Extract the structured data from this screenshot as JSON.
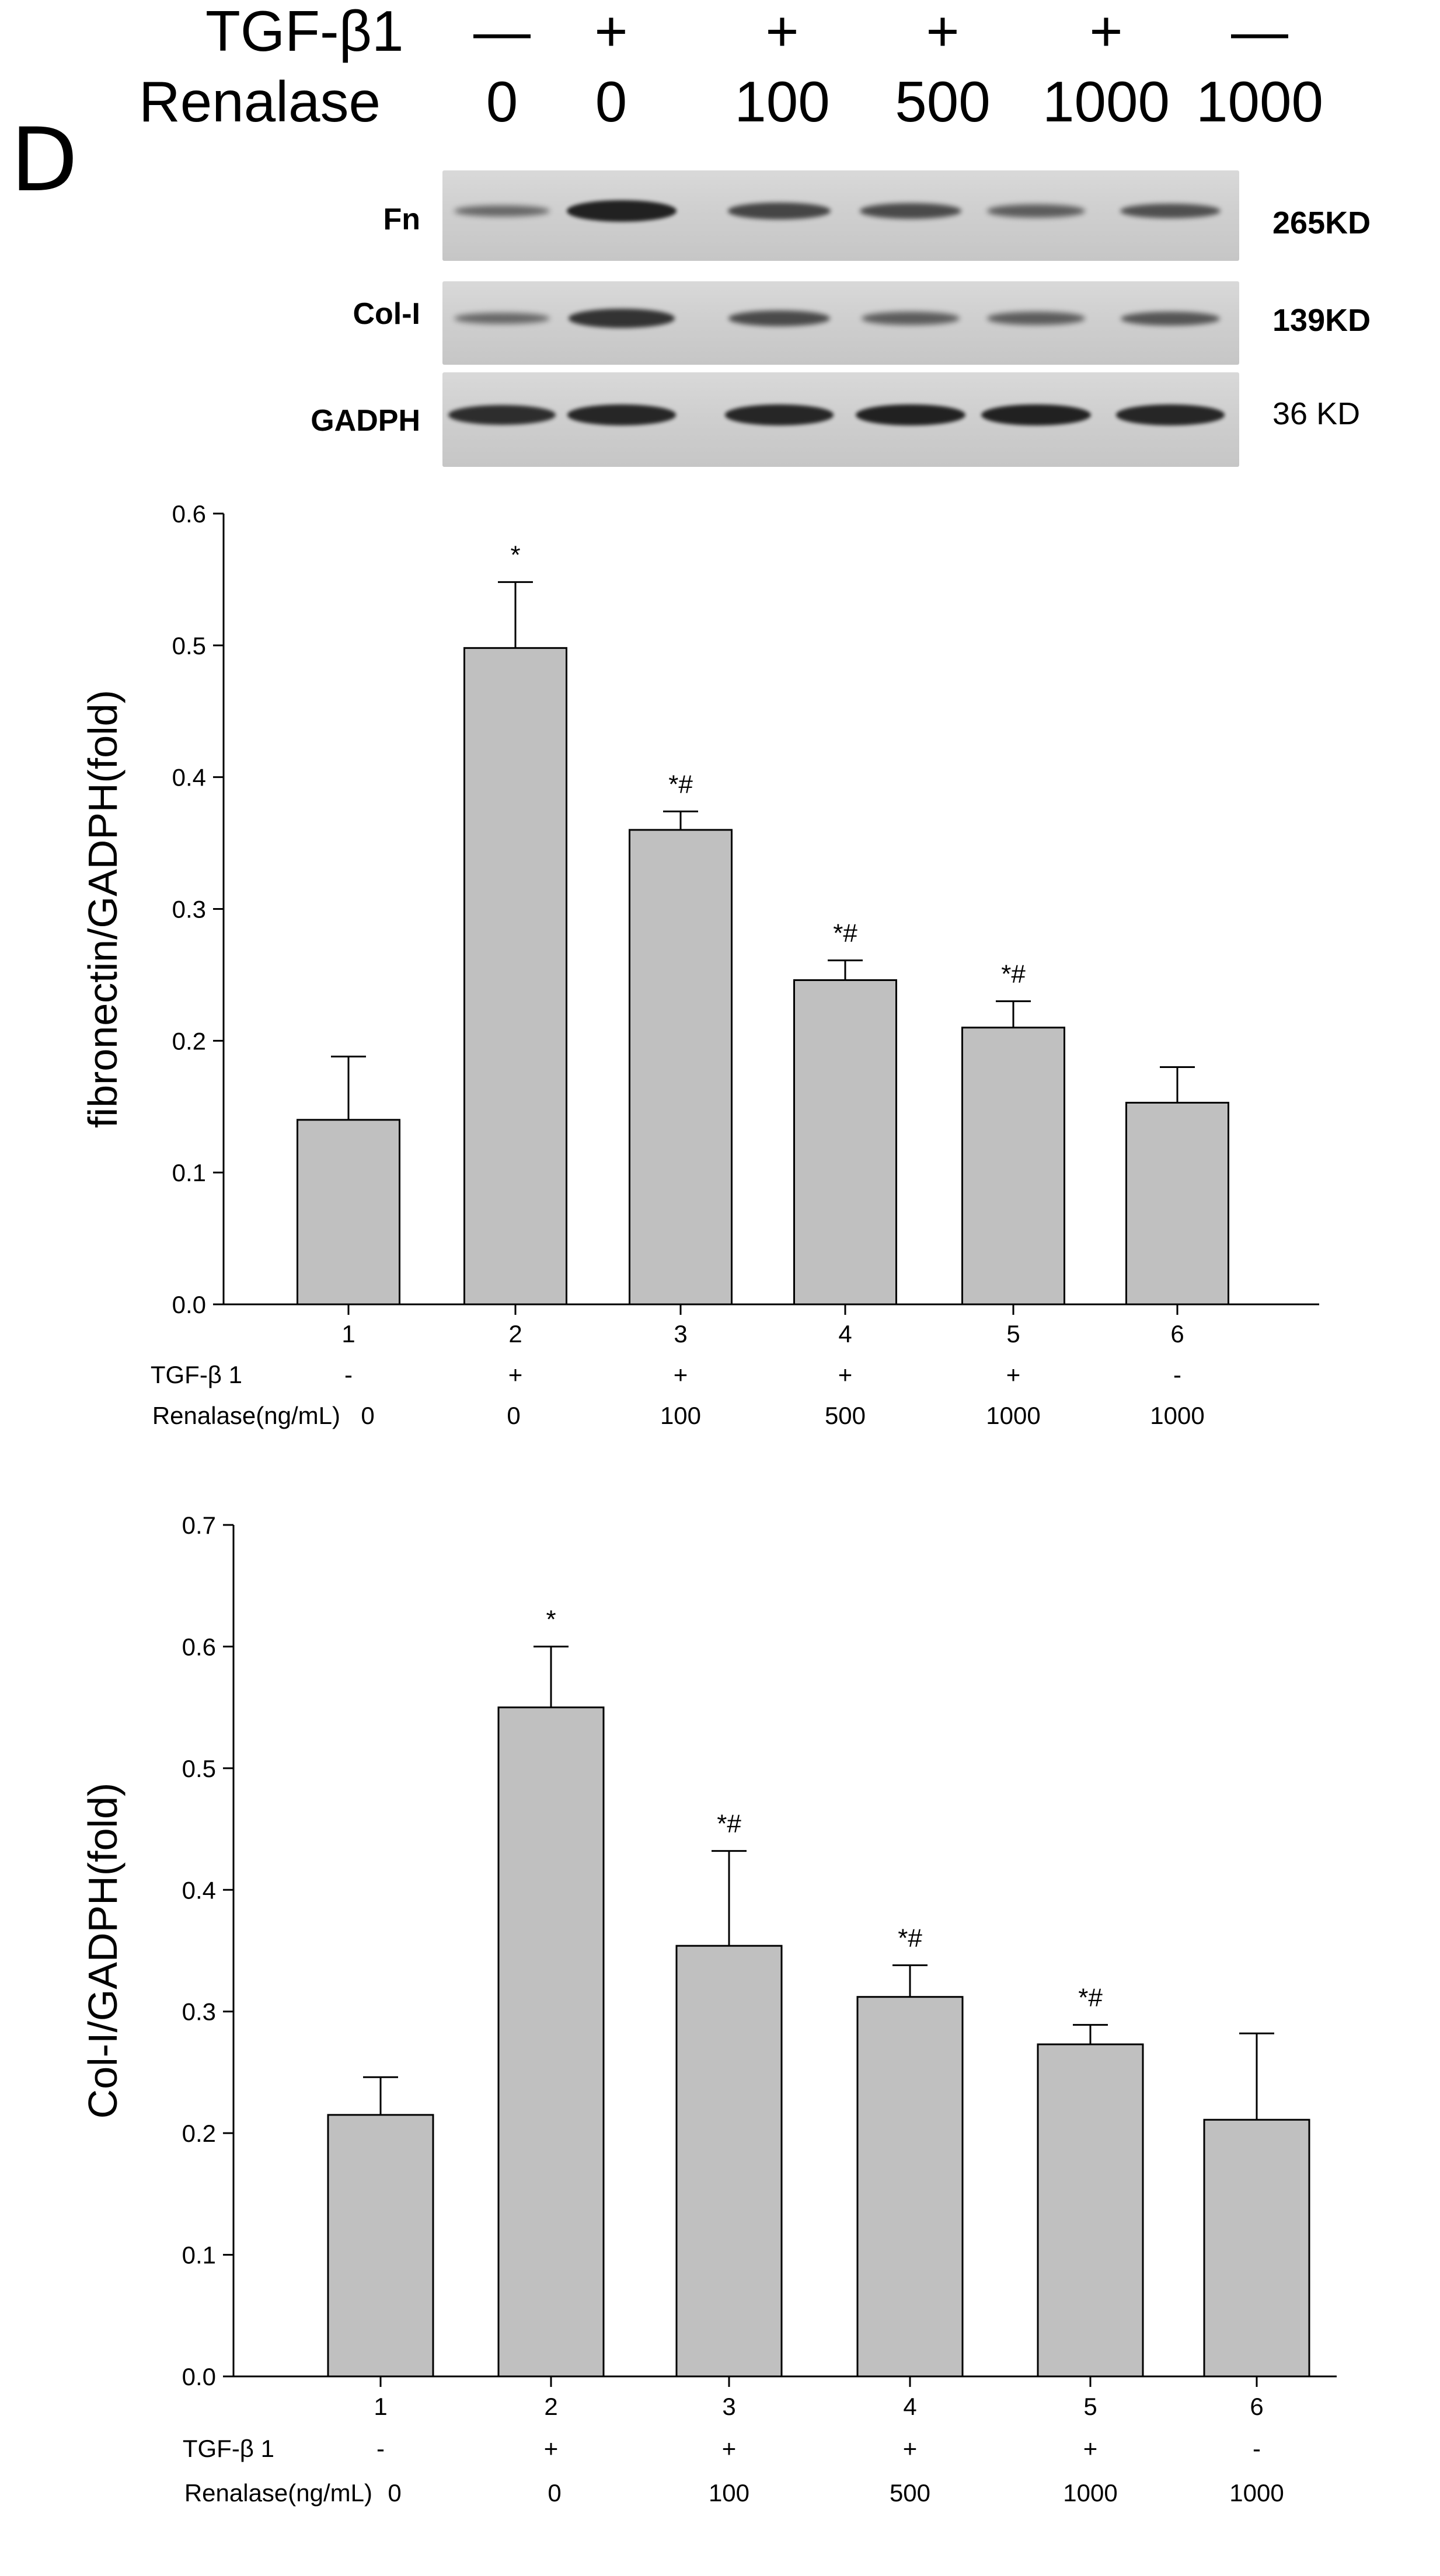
{
  "panel_label": "D",
  "header": {
    "tgf_label": "TGF-β1",
    "tgf_signs": [
      "—",
      "+",
      "+",
      "+",
      "+",
      "—"
    ],
    "renalase_label": "Renalase",
    "renalase_values": [
      "0",
      "0",
      "100",
      "500",
      "1000",
      "1000"
    ]
  },
  "blots": [
    {
      "label": "Fn",
      "kd": "265KD",
      "intensities": [
        0.35,
        0.95,
        0.65,
        0.6,
        0.45,
        0.55
      ]
    },
    {
      "label": "Col-I",
      "kd": "139KD",
      "intensities": [
        0.35,
        0.8,
        0.6,
        0.45,
        0.45,
        0.5
      ]
    },
    {
      "label": "GADPH",
      "kd": "36 KD",
      "intensities": [
        0.85,
        0.9,
        0.9,
        0.95,
        0.95,
        0.9
      ]
    }
  ],
  "colors": {
    "bar_fill": "#c0c0c0",
    "bar_stroke": "#000000",
    "blot_bg": "#cfcfcf",
    "band": "#1c1c1c"
  },
  "chart_data": [
    {
      "type": "bar",
      "title": "",
      "xlabel": "",
      "ylabel": "fibronectin/GADPH(fold)",
      "ylim": [
        0,
        0.6
      ],
      "yticks": [
        "0.0",
        "0.1",
        "0.2",
        "0.3",
        "0.4",
        "0.5",
        "0.6"
      ],
      "categories": [
        "1",
        "2",
        "3",
        "4",
        "5",
        "6"
      ],
      "values": [
        0.14,
        0.498,
        0.36,
        0.246,
        0.21,
        0.153
      ],
      "errors": [
        0.048,
        0.05,
        0.014,
        0.015,
        0.02,
        0.027
      ],
      "annotations": [
        "",
        "*",
        "*#",
        "*#",
        "*#",
        ""
      ],
      "row_labels": [
        "TGF-β 1",
        "Renalase(ng/mL)"
      ],
      "tgf_row": [
        "-",
        "+",
        "+",
        "+",
        "+",
        "-"
      ],
      "renalase_row": [
        "0",
        "0",
        "100",
        "500",
        "1000",
        "1000"
      ]
    },
    {
      "type": "bar",
      "title": "",
      "xlabel": "",
      "ylabel": "Col-I/GADPH(fold)",
      "ylim": [
        0,
        0.7
      ],
      "yticks": [
        "0.0",
        "0.1",
        "0.2",
        "0.3",
        "0.4",
        "0.5",
        "0.6",
        "0.7"
      ],
      "categories": [
        "1",
        "2",
        "3",
        "4",
        "5",
        "6"
      ],
      "values": [
        0.215,
        0.55,
        0.354,
        0.312,
        0.273,
        0.211
      ],
      "errors": [
        0.031,
        0.05,
        0.078,
        0.026,
        0.016,
        0.071
      ],
      "annotations": [
        "",
        "*",
        "*#",
        "*#",
        "*#",
        ""
      ],
      "row_labels": [
        "TGF-β 1",
        "Renalase(ng/mL)"
      ],
      "tgf_row": [
        "-",
        "+",
        "+",
        "+",
        "+",
        "-"
      ],
      "renalase_row": [
        "0",
        "0",
        "100",
        "500",
        "1000",
        "1000"
      ]
    }
  ]
}
